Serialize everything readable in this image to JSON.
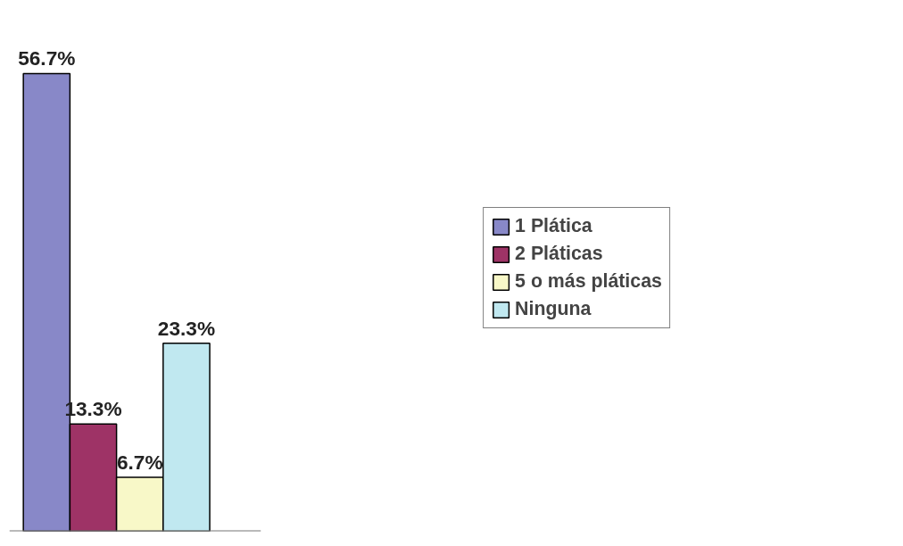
{
  "chart_data": {
    "type": "bar",
    "categories": [
      null
    ],
    "series": [
      {
        "name": "1 Plática",
        "color": "#8888c8",
        "values": [
          56.7
        ],
        "value_labels": [
          "56.7%"
        ]
      },
      {
        "name": "2 Pláticas",
        "color": "#9e3366",
        "values": [
          13.3
        ],
        "value_labels": [
          "13.3%"
        ]
      },
      {
        "name": "5 o más pláticas",
        "color": "#f8f8c8",
        "values": [
          6.7
        ],
        "value_labels": [
          "6.7%"
        ]
      },
      {
        "name": "Ninguna",
        "color": "#c0e8f0",
        "values": [
          23.3
        ],
        "value_labels": [
          "23.3%"
        ]
      }
    ],
    "legend": "right",
    "grid": false
  }
}
